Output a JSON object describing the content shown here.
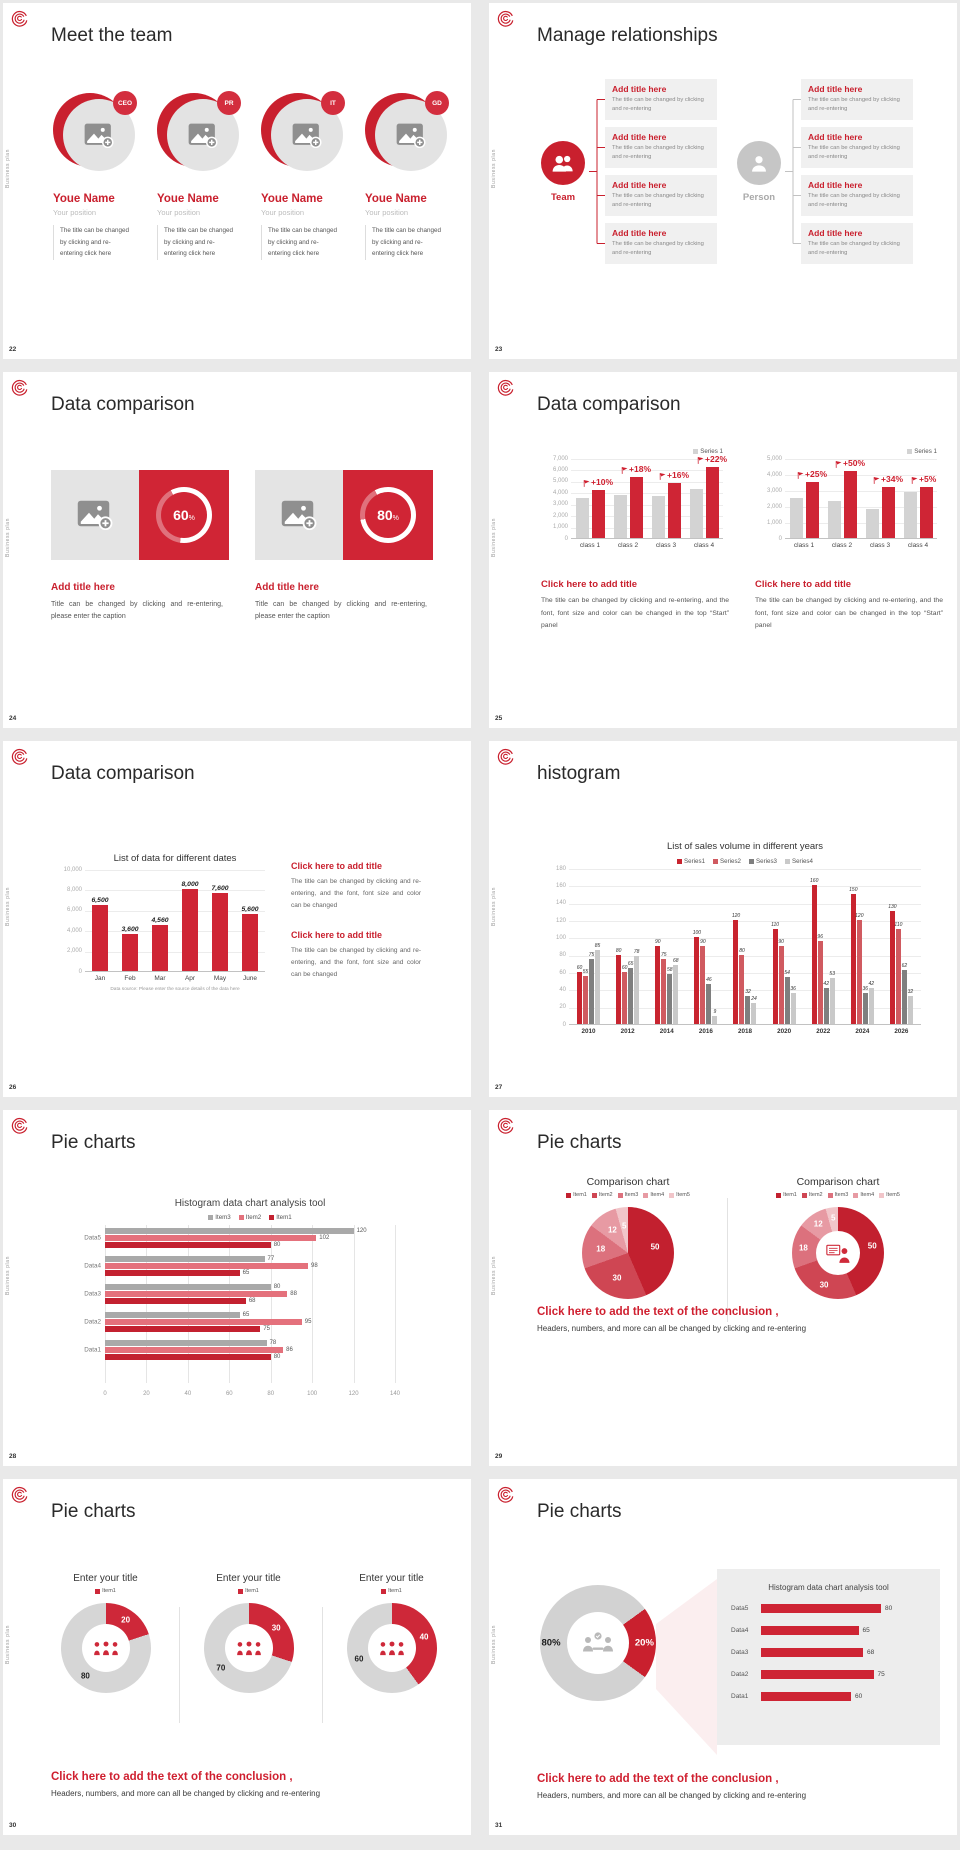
{
  "app": {
    "background": "#e9e9e9",
    "accent": "#c9202e"
  },
  "common": {
    "vertical_label": "Business plan",
    "logo_icon": "spiral-logo"
  },
  "slides": {
    "s22": {
      "page": "22",
      "title": "Meet the team",
      "members": [
        {
          "badge": "CEO",
          "name": "Youe Name",
          "position": "Your position",
          "desc": "The title can be changed by clicking and re-entering click here"
        },
        {
          "badge": "PR",
          "name": "Youe Name",
          "position": "Your position",
          "desc": "The title can be changed by clicking and re-entering click here"
        },
        {
          "badge": "IT",
          "name": "Youe Name",
          "position": "Your position",
          "desc": "The title can be changed by clicking and re-entering click here"
        },
        {
          "badge": "GD",
          "name": "Youe Name",
          "position": "Your position",
          "desc": "The title can be changed by clicking and re-entering click here"
        }
      ]
    },
    "s23": {
      "page": "23",
      "title": "Manage relationships",
      "team": {
        "label": "Team"
      },
      "person": {
        "label": "Person"
      },
      "box_title": "Add title here",
      "box_text": "The title can be changed by clicking and re-entering"
    },
    "s24": {
      "page": "24",
      "title": "Data comparison",
      "cards": [
        {
          "title": "Add title here",
          "text": "Title can be changed by clicking and re-entering, please enter the caption"
        },
        {
          "title": "Add title here",
          "text": "Title can be changed by clicking and re-entering, please enter the caption"
        }
      ]
    },
    "s25": {
      "page": "25",
      "title": "Data comparison",
      "captions": [
        {
          "title": "Click here to add title",
          "text": "The title can be changed by clicking and re-entering, and the font, font size and color can be changed in the top “Start” panel"
        },
        {
          "title": "Click here to add title",
          "text": "The title can be changed by clicking and re-entering, and the font, font size and color can be changed in the top “Start” panel"
        }
      ]
    },
    "s26": {
      "page": "26",
      "title": "Data comparison",
      "blocks": [
        {
          "title": "Click here to add title",
          "text": "The title can be changed by clicking and re-entering, and the font, font size and color can be changed"
        },
        {
          "title": "Click here to add title",
          "text": "The title can be changed by clicking and re-entering, and the font, font size and color can be changed"
        }
      ]
    },
    "s27": {
      "page": "27",
      "title": "histogram"
    },
    "s28": {
      "page": "28",
      "title": "Pie charts"
    },
    "s29": {
      "page": "29",
      "title": "Pie charts",
      "conclusion_title": "Click here to add the text of the conclusion ,",
      "conclusion_text": "Headers, numbers, and more can all be changed by clicking and re-entering"
    },
    "s30": {
      "page": "30",
      "title": "Pie charts",
      "conclusion_title": "Click here to add the text of the conclusion ,",
      "conclusion_text": "Headers, numbers, and more can all be changed by clicking and re-entering"
    },
    "s31": {
      "page": "31",
      "title": "Pie charts",
      "conclusion_title": "Click here to add the text of the conclusion ,",
      "conclusion_text": "Headers, numbers, and more can all be changed by clicking and re-entering"
    }
  },
  "charts": {
    "bar_class_1": {
      "type": "bar",
      "legend": [
        {
          "name": "Series 1",
          "color": "#d3d3d3"
        }
      ],
      "ymax": 7000,
      "yticks": [
        "0",
        "1,000",
        "2,000",
        "3,000",
        "4,000",
        "5,000",
        "6,000",
        "7,000"
      ],
      "categories": [
        "class 1",
        "class 2",
        "class 3",
        "class 4"
      ],
      "series": [
        {
          "name": "base",
          "color": "#d3d3d3",
          "values": [
            3500,
            3800,
            3700,
            4300
          ]
        },
        {
          "name": "highlight",
          "color": "#cf2535",
          "values": [
            4200,
            5300,
            4800,
            6200
          ]
        }
      ],
      "annotations": [
        "+10%",
        "+18%",
        "+16%",
        "+22%"
      ]
    },
    "bar_class_2": {
      "type": "bar",
      "legend": [
        {
          "name": "Series 1",
          "color": "#d3d3d3"
        }
      ],
      "ymax": 5000,
      "yticks": [
        "0",
        "1,000",
        "2,000",
        "3,000",
        "4,000",
        "5,000"
      ],
      "categories": [
        "class 1",
        "class 2",
        "class 3",
        "class 4"
      ],
      "series": [
        {
          "name": "base",
          "color": "#d3d3d3",
          "values": [
            2500,
            2300,
            1800,
            2900
          ]
        },
        {
          "name": "highlight",
          "color": "#cf2535",
          "values": [
            3500,
            4200,
            3200,
            3200
          ]
        }
      ],
      "annotations": [
        "+25%",
        "+50%",
        "+34%",
        "+5%"
      ]
    },
    "bar_dates": {
      "type": "bar",
      "title": "List of data for different dates",
      "ymax": 10000,
      "yticks": [
        "0",
        "2,000",
        "4,000",
        "6,000",
        "8,000",
        "10,000"
      ],
      "categories": [
        "Jan",
        "Feb",
        "Mar",
        "Apr",
        "May",
        "June"
      ],
      "series": [
        {
          "name": "data",
          "color": "#cf2535",
          "values": [
            6500,
            3600,
            4560,
            8000,
            7600,
            5600
          ],
          "labels": [
            "6,500",
            "3,600",
            "4,560",
            "8,000",
            "7,600",
            "5,600"
          ]
        }
      ],
      "footnote": "Data source: Please enter the source details of the data here"
    },
    "bar_years": {
      "type": "bar",
      "title": "List of sales volume in different years",
      "ymax": 180,
      "yticks": [
        "0",
        "20",
        "40",
        "60",
        "80",
        "100",
        "120",
        "140",
        "160",
        "180"
      ],
      "categories": [
        "2010",
        "2012",
        "2014",
        "2016",
        "2018",
        "2020",
        "2022",
        "2024",
        "2026"
      ],
      "legend": [
        {
          "name": "Series1",
          "color": "#c8242f"
        },
        {
          "name": "Series2",
          "color": "#d05a60"
        },
        {
          "name": "Series3",
          "color": "#7f7f7f"
        },
        {
          "name": "Series4",
          "color": "#c9c9c9"
        }
      ],
      "series": [
        {
          "name": "Series1",
          "color": "#c8242f",
          "values": [
            60,
            80,
            90,
            100,
            120,
            110,
            160,
            150,
            130
          ]
        },
        {
          "name": "Series2",
          "color": "#d05a60",
          "values": [
            55,
            60,
            75,
            90,
            80,
            90,
            96,
            120,
            110
          ]
        },
        {
          "name": "Series3",
          "color": "#7f7f7f",
          "values": [
            75,
            65,
            58,
            46,
            32,
            54,
            42,
            36,
            62
          ]
        },
        {
          "name": "Series4",
          "color": "#c9c9c9",
          "values": [
            85,
            78,
            68,
            9,
            24,
            36,
            53,
            42,
            32
          ]
        }
      ]
    },
    "hbar_items": {
      "type": "bar-horizontal",
      "title": "Histogram data chart analysis tool",
      "xmax": 140,
      "xticks": [
        "0",
        "20",
        "40",
        "60",
        "80",
        "100",
        "120",
        "140"
      ],
      "legend": [
        {
          "name": "Item3",
          "color": "#a9a9a9"
        },
        {
          "name": "Item2",
          "color": "#e4717c"
        },
        {
          "name": "Item1",
          "color": "#c32130"
        }
      ],
      "rows": [
        {
          "label": "Data5",
          "values": [
            120,
            102,
            80
          ]
        },
        {
          "label": "Data4",
          "values": [
            77,
            98,
            65
          ]
        },
        {
          "label": "Data3",
          "values": [
            80,
            88,
            68
          ]
        },
        {
          "label": "Data2",
          "values": [
            65,
            95,
            75
          ]
        },
        {
          "label": "Data1",
          "values": [
            78,
            86,
            80
          ]
        }
      ]
    },
    "pie_comparison": {
      "type": "pie",
      "title": "Comparison chart",
      "legend": [
        {
          "name": "Item1",
          "color": "#c2202f"
        },
        {
          "name": "Item2",
          "color": "#cf4653"
        },
        {
          "name": "Item3",
          "color": "#dc717d"
        },
        {
          "name": "Item4",
          "color": "#e79aa3"
        },
        {
          "name": "Item5",
          "color": "#f1c5c9"
        }
      ],
      "values": [
        50,
        30,
        18,
        12,
        5
      ],
      "labels": [
        "50",
        "30",
        "18",
        "12",
        "5"
      ],
      "colors": [
        "#c2202f",
        "#cf4653",
        "#dc717d",
        "#e79aa3",
        "#f1c5c9"
      ],
      "label_colors": [
        "#ffffff",
        "#ffffff",
        "#ffffff",
        "#ffffff",
        "#ffffff"
      ]
    },
    "donut_comparison": {
      "type": "donut",
      "title": "Comparison chart",
      "legend": [
        {
          "name": "Item1",
          "color": "#c2202f"
        },
        {
          "name": "Item2",
          "color": "#cf4653"
        },
        {
          "name": "Item3",
          "color": "#dc717d"
        },
        {
          "name": "Item4",
          "color": "#e79aa3"
        },
        {
          "name": "Item5",
          "color": "#f1c5c9"
        }
      ],
      "values": [
        50,
        30,
        18,
        12,
        5
      ],
      "labels": [
        "50",
        "30",
        "18",
        "12",
        "5"
      ],
      "colors": [
        "#c2202f",
        "#cf4653",
        "#dc717d",
        "#e79aa3",
        "#f1c5c9"
      ],
      "label_colors": [
        "#ffffff",
        "#ffffff",
        "#ffffff",
        "#ffffff",
        "#ffffff"
      ],
      "center_icon": "presenter"
    },
    "donut_20": {
      "type": "donut",
      "title": "Enter your title",
      "legend": [
        {
          "name": "Item1",
          "color": "#ce2839"
        }
      ],
      "values": [
        20,
        80
      ],
      "labels": [
        "20",
        "80"
      ],
      "colors": [
        "#ce2839",
        "#d6d6d6"
      ],
      "label_colors": [
        "#ffffff",
        "#222222"
      ],
      "center_icon": "people"
    },
    "donut_30": {
      "type": "donut",
      "title": "Enter your title",
      "legend": [
        {
          "name": "Item1",
          "color": "#ce2839"
        }
      ],
      "values": [
        30,
        70
      ],
      "labels": [
        "30",
        "70"
      ],
      "colors": [
        "#ce2839",
        "#d6d6d6"
      ],
      "label_colors": [
        "#ffffff",
        "#222222"
      ],
      "center_icon": "people"
    },
    "donut_40": {
      "type": "donut",
      "title": "Enter your title",
      "legend": [
        {
          "name": "Item1",
          "color": "#ce2839"
        }
      ],
      "values": [
        40,
        60
      ],
      "labels": [
        "40",
        "60"
      ],
      "colors": [
        "#ce2839",
        "#d6d6d6"
      ],
      "label_colors": [
        "#ffffff",
        "#222222"
      ],
      "center_icon": "people"
    },
    "donut_80_20": {
      "type": "donut",
      "values": [
        20,
        80
      ],
      "labels": [
        "20%",
        "80%"
      ],
      "colors": [
        "#c9202e",
        "#d2d2d2"
      ],
      "label_colors": [
        "#ffffff",
        "#1a1a1a"
      ],
      "start": 54,
      "center_icon": "meeting"
    },
    "ring_60": {
      "type": "progress-ring",
      "percent": "60",
      "suffix": "%"
    },
    "ring_80": {
      "type": "progress-ring",
      "percent": "80",
      "suffix": "%"
    },
    "hbar_mini": {
      "type": "bar-horizontal",
      "title": "Histogram data chart analysis tool",
      "xmax": 100,
      "rows": [
        {
          "label": "Data5",
          "value": 80
        },
        {
          "label": "Data4",
          "value": 65
        },
        {
          "label": "Data3",
          "value": 68
        },
        {
          "label": "Data2",
          "value": 75
        },
        {
          "label": "Data1",
          "value": 60
        }
      ]
    }
  }
}
